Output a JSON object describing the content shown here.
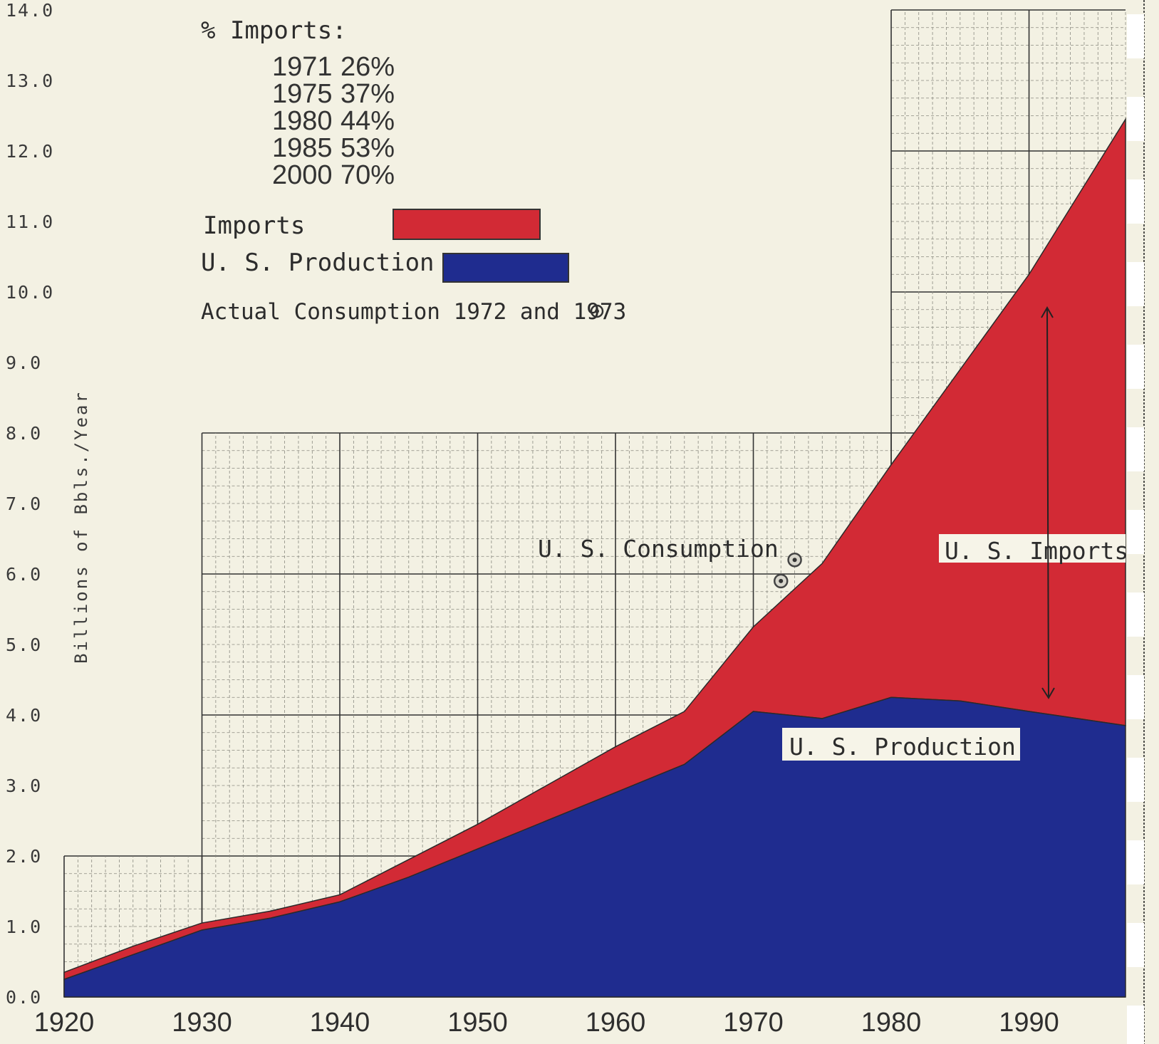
{
  "chart_data": {
    "type": "area",
    "stacked": true,
    "ylabel": "Billions of Bbls./Year",
    "xlabel": "",
    "xlim": [
      1920,
      1997
    ],
    "ylim": [
      0,
      14
    ],
    "y_ticks": [
      "0.0",
      "1.0",
      "2.0",
      "3.0",
      "4.0",
      "5.0",
      "6.0",
      "7.0",
      "8.0",
      "9.0",
      "10.0",
      "11.0",
      "12.0",
      "13.0",
      "14.0"
    ],
    "x_ticks": [
      "1920",
      "1930",
      "1940",
      "1950",
      "1960",
      "1970",
      "1980",
      "1990"
    ],
    "x": [
      1920,
      1925,
      1930,
      1935,
      1940,
      1945,
      1950,
      1955,
      1960,
      1965,
      1970,
      1975,
      1980,
      1985,
      1990,
      1997
    ],
    "series": [
      {
        "name": "U. S. Production",
        "color": "#1f2c8f",
        "values": [
          0.25,
          0.6,
          0.95,
          1.12,
          1.35,
          1.7,
          2.1,
          2.5,
          2.9,
          3.3,
          4.05,
          3.95,
          4.25,
          4.2,
          4.05,
          3.85
        ]
      },
      {
        "name": "Imports",
        "color": "#d22a35",
        "values": [
          0.1,
          0.12,
          0.1,
          0.1,
          0.1,
          0.25,
          0.35,
          0.5,
          0.65,
          0.75,
          1.2,
          2.2,
          3.3,
          4.7,
          6.2,
          8.6
        ]
      }
    ],
    "consumption_points": [
      {
        "year": 1972,
        "value": 5.9
      },
      {
        "year": 1973,
        "value": 6.2
      }
    ],
    "legend": {
      "imports_title": "% Imports:",
      "imports_pct": [
        {
          "year": "1971",
          "pct": "26%"
        },
        {
          "year": "1975",
          "pct": "37%"
        },
        {
          "year": "1980",
          "pct": "44%"
        },
        {
          "year": "1985",
          "pct": "53%"
        },
        {
          "year": "2000",
          "pct": "70%"
        }
      ],
      "imports_label": "Imports",
      "production_label": "U. S. Production",
      "actual_label": "Actual Consumption 1972 and 1973"
    },
    "annotations": {
      "consumption": "U. S. Consumption",
      "imports": "U. S. Imports",
      "production": "U. S. Production"
    }
  }
}
